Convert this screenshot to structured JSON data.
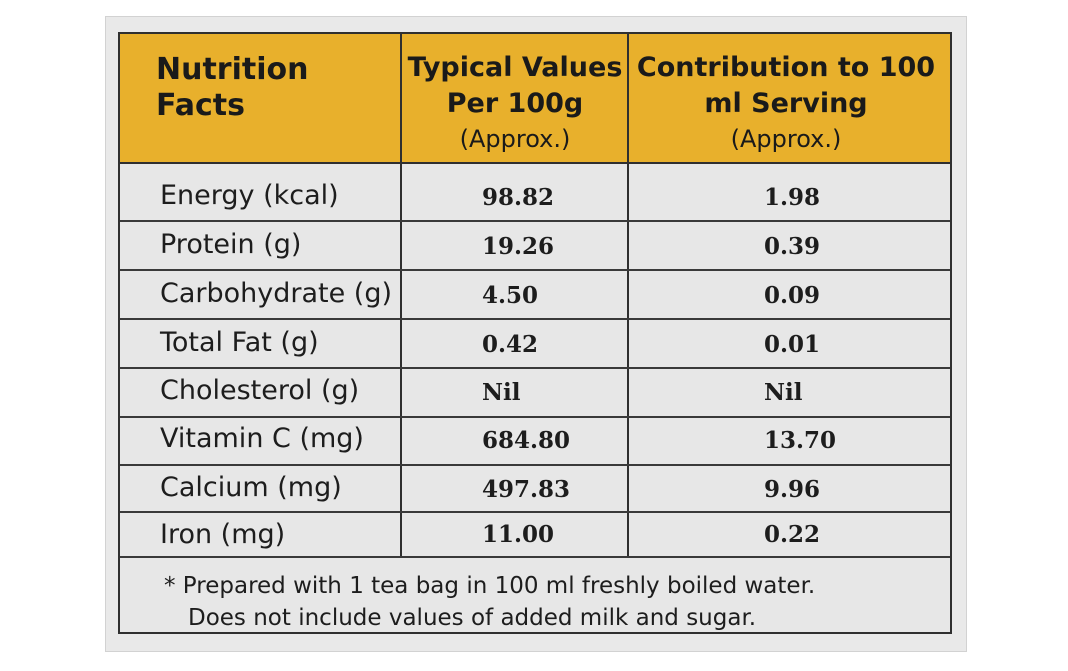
{
  "header": {
    "nutrition_title": "Nutrition Facts",
    "col1_title": "Typical Values Per 100g",
    "col1_note": "(Approx.)",
    "col2_title": "Contribution to 100 ml Serving",
    "col2_note": "(Approx.)"
  },
  "rows": [
    {
      "label": "Energy (kcal)",
      "per100g": "98.82",
      "serving": "1.98"
    },
    {
      "label": "Protein (g)",
      "per100g": "19.26",
      "serving": "0.39"
    },
    {
      "label": "Carbohydrate (g)",
      "per100g": "4.50",
      "serving": "0.09"
    },
    {
      "label": "Total Fat (g)",
      "per100g": "0.42",
      "serving": "0.01"
    },
    {
      "label": "Cholesterol (g)",
      "per100g": "Nil",
      "serving": "Nil"
    },
    {
      "label": "Vitamin C (mg)",
      "per100g": "684.80",
      "serving": "13.70"
    },
    {
      "label": "Calcium (mg)",
      "per100g": "497.83",
      "serving": "9.96"
    },
    {
      "label": "Iron (mg)",
      "per100g": "11.00",
      "serving": "0.22"
    }
  ],
  "footnote": {
    "line1": "* Prepared with 1 tea bag in 100 ml freshly boiled water.",
    "line2": "Does not include values of added milk and sugar."
  },
  "colors": {
    "header_bg": "#e8b02c",
    "body_bg": "#e7e7e7",
    "rule": "#2f2f2f"
  }
}
